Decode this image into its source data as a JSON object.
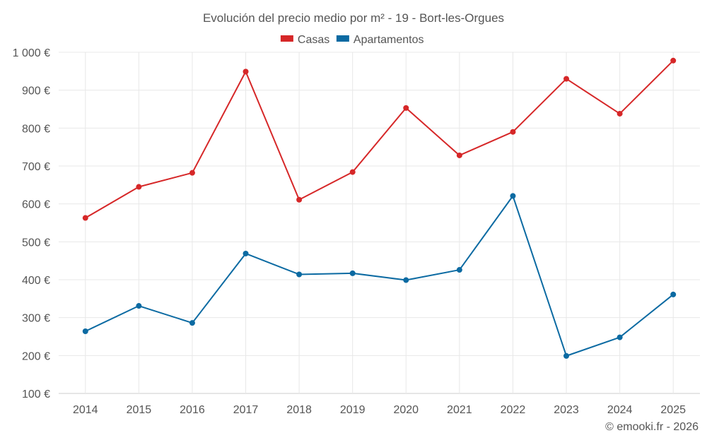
{
  "chart_data": {
    "type": "line",
    "title": "Evolución del precio medio por m² - 19 - Bort-les-Orgues",
    "xlabel": "",
    "ylabel": "",
    "categories": [
      "2014",
      "2015",
      "2016",
      "2017",
      "2018",
      "2019",
      "2020",
      "2021",
      "2022",
      "2023",
      "2024",
      "2025"
    ],
    "ylim": [
      100,
      1000
    ],
    "yticks": [
      100,
      200,
      300,
      400,
      500,
      600,
      700,
      800,
      900,
      1000
    ],
    "ytick_labels": [
      "100 €",
      "200 €",
      "300 €",
      "400 €",
      "500 €",
      "600 €",
      "700 €",
      "800 €",
      "900 €",
      "1 000 €"
    ],
    "grid": true,
    "legend_position": "top-center",
    "series": [
      {
        "name": "Casas",
        "color": "#d62728",
        "values": [
          563,
          645,
          682,
          949,
          611,
          684,
          853,
          728,
          790,
          930,
          838,
          978
        ]
      },
      {
        "name": "Apartamentos",
        "color": "#0b6aa2",
        "values": [
          264,
          331,
          286,
          469,
          414,
          417,
          399,
          426,
          621,
          199,
          248,
          361
        ]
      }
    ]
  },
  "footer": {
    "credit": "© emooki.fr - 2026"
  },
  "colors": {
    "grid": "#e8e8e8",
    "axis": "#cccccc",
    "text": "#555555"
  }
}
